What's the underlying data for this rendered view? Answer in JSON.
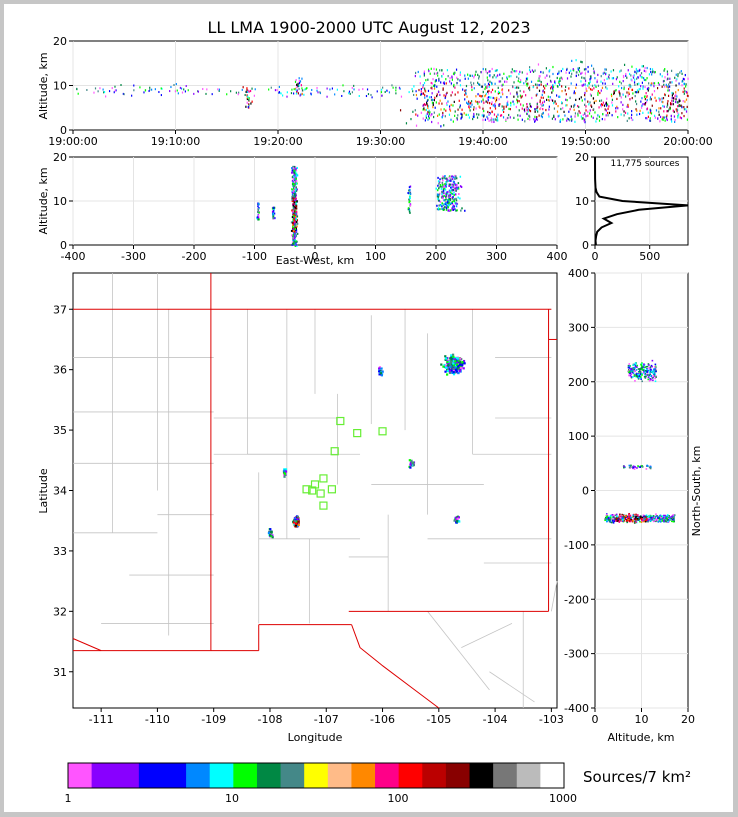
{
  "title": "LL LMA 1900-2000 UTC August 12, 2023",
  "panels": {
    "time_height": {
      "ylabel": "Altitude, km",
      "yticks": [
        "0",
        "10",
        "20"
      ],
      "xticks": [
        "19:00:00",
        "19:10:00",
        "19:20:00",
        "19:30:00",
        "19:40:00",
        "19:50:00",
        "20:00:00"
      ]
    },
    "ew_height": {
      "ylabel": "Altitude, km",
      "xlabel": "East-West, km",
      "yticks": [
        "0",
        "10",
        "20"
      ],
      "xticks": [
        "-400",
        "-300",
        "-200",
        "-100",
        "0",
        "100",
        "200",
        "300",
        "400"
      ]
    },
    "histogram": {
      "label": "11,775 sources",
      "yticks": [
        "0",
        "10",
        "20"
      ],
      "xticks": [
        "0",
        "500"
      ]
    },
    "plan_view": {
      "xlabel": "Longitude",
      "ylabel": "Latitude",
      "xticks": [
        "-111",
        "-110",
        "-109",
        "-108",
        "-107",
        "-106",
        "-105",
        "-104",
        "-103"
      ],
      "yticks": [
        "31",
        "32",
        "33",
        "34",
        "35",
        "36",
        "37"
      ]
    },
    "ns_height": {
      "xlabel": "Altitude, km",
      "ylabel": "North-South, km",
      "xticks": [
        "0",
        "10",
        "20"
      ],
      "yticks": [
        "400",
        "300",
        "200",
        "100",
        "0",
        "-100",
        "-200",
        "-300",
        "-400"
      ]
    }
  },
  "colorbar": {
    "label": "Sources/7 km²",
    "ticks": [
      "1",
      "10",
      "100",
      "1000"
    ],
    "colors": [
      "#ff55ff",
      "#8800ff",
      "#0000ff",
      "#0088ff",
      "#00ffff",
      "#00ff00",
      "#008844",
      "#448888",
      "#ffff00",
      "#ffbb88",
      "#ff8800",
      "#ff0088",
      "#ff0000",
      "#bb0000",
      "#880000",
      "#000000",
      "#777777",
      "#bbbbbb",
      "#ffffff"
    ]
  },
  "chart_data": {
    "type": "scatter",
    "title": "LL LMA 1900-2000 UTC August 12, 2023",
    "total_sources": 11775,
    "time_height": {
      "xlim": [
        "19:00:00",
        "20:00:00"
      ],
      "ylim": [
        0,
        20
      ],
      "activity": [
        {
          "time_min": 17,
          "alt_km": [
            5,
            10
          ]
        },
        {
          "time_min": 22,
          "alt_km": [
            8,
            12
          ]
        },
        {
          "time_min": 34.5,
          "alt_km": [
            1,
            14
          ]
        },
        {
          "time_min": 40,
          "alt_km": [
            2,
            14
          ]
        },
        {
          "time_min": 46,
          "alt_km": [
            2,
            15
          ]
        },
        {
          "time_min": 50,
          "alt_km": [
            2,
            16
          ]
        },
        {
          "time_min": 55,
          "alt_km": [
            3,
            15
          ]
        },
        {
          "time_min": 59,
          "alt_km": [
            3,
            14
          ]
        }
      ]
    },
    "ew_height": {
      "xlim": [
        -400,
        400
      ],
      "ylim": [
        0,
        20
      ],
      "clusters": [
        {
          "x_km": -35,
          "alt_km": [
            0,
            18
          ]
        },
        {
          "x_km": -95,
          "alt_km": [
            6,
            10
          ]
        },
        {
          "x_km": -70,
          "alt_km": [
            6,
            9
          ]
        },
        {
          "x_km": 155,
          "alt_km": [
            7,
            14
          ]
        },
        {
          "x_km": 220,
          "alt_km": [
            8,
            16
          ]
        }
      ]
    },
    "altitude_histogram": {
      "xlim": [
        0,
        850
      ],
      "ylim": [
        0,
        20
      ],
      "alt_km": [
        0,
        1,
        2,
        3,
        4,
        5,
        6,
        7,
        8,
        9,
        10,
        11,
        12,
        13,
        14,
        15,
        20
      ],
      "sources": [
        8,
        5,
        10,
        20,
        60,
        150,
        80,
        200,
        400,
        850,
        250,
        40,
        15,
        5,
        3,
        1,
        0
      ]
    },
    "plan_view": {
      "xlim": [
        -111.5,
        -102.9
      ],
      "ylim": [
        30.4,
        37.6
      ],
      "sensors": [
        [
          -106.75,
          35.15
        ],
        [
          -106.45,
          34.95
        ],
        [
          -106.0,
          34.98
        ],
        [
          -106.85,
          34.65
        ],
        [
          -107.05,
          34.2
        ],
        [
          -107.2,
          34.1
        ],
        [
          -107.35,
          34.02
        ],
        [
          -107.1,
          33.95
        ],
        [
          -106.9,
          34.02
        ],
        [
          -107.05,
          33.75
        ],
        [
          -107.25,
          34.0
        ]
      ],
      "clusters": [
        {
          "lon": -107.55,
          "lat": 33.5
        },
        {
          "lon": -104.75,
          "lat": 36.1
        },
        {
          "lon": -105.5,
          "lat": 34.45
        },
        {
          "lon": -104.7,
          "lat": 33.55
        },
        {
          "lon": -108.0,
          "lat": 33.3
        },
        {
          "lon": -106.05,
          "lat": 36.0
        },
        {
          "lon": -107.75,
          "lat": 34.32
        }
      ]
    },
    "ns_height": {
      "xlim": [
        0,
        20
      ],
      "ylim": [
        -400,
        400
      ],
      "clusters": [
        {
          "alt_km": [
            2,
            17
          ],
          "y_km": -50
        },
        {
          "alt_km": [
            7,
            13
          ],
          "y_km": 220
        },
        {
          "alt_km": [
            6,
            12
          ],
          "y_km": 45
        }
      ]
    }
  }
}
